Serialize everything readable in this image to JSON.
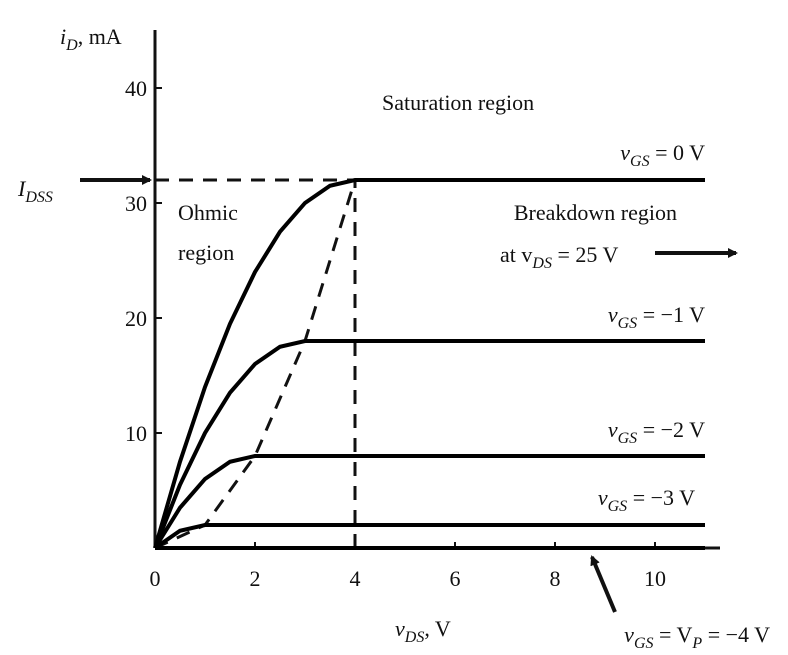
{
  "chart_data": {
    "type": "line",
    "x_label": [
      "v",
      "DS",
      ", V"
    ],
    "y_label": [
      "i",
      "D",
      ", mA"
    ],
    "xlim": [
      0,
      11.3
    ],
    "ylim": [
      0,
      45
    ],
    "xticks": [
      0,
      2,
      4,
      6,
      8,
      10
    ],
    "yticks": [
      10,
      20,
      30,
      40
    ],
    "series": [
      {
        "name": [
          "v",
          "GS",
          " = 0 V"
        ],
        "color": "#000000",
        "x": [
          0,
          0.5,
          1,
          1.5,
          2,
          2.5,
          3,
          3.5,
          4,
          11
        ],
        "values": [
          0,
          7.5,
          14,
          19.5,
          24,
          27.5,
          30,
          31.5,
          32,
          32
        ]
      },
      {
        "name": [
          "v",
          "GS",
          " = −1 V"
        ],
        "color": "#000000",
        "x": [
          0,
          0.5,
          1,
          1.5,
          2,
          2.5,
          3,
          11
        ],
        "values": [
          0,
          5.5,
          10,
          13.5,
          16,
          17.5,
          18,
          18
        ]
      },
      {
        "name": [
          "v",
          "GS",
          " = −2 V"
        ],
        "color": "#000000",
        "x": [
          0,
          0.5,
          1,
          1.5,
          2,
          11
        ],
        "values": [
          0,
          3.5,
          6,
          7.5,
          8,
          8
        ]
      },
      {
        "name": [
          "v",
          "GS",
          " = −3 V"
        ],
        "color": "#000000",
        "x": [
          0,
          0.5,
          1,
          11
        ],
        "values": [
          0,
          1.5,
          2,
          2
        ]
      },
      {
        "name": [
          "v",
          "GS",
          " = V",
          "P",
          " = −4 V"
        ],
        "color": "#000000",
        "x": [
          0,
          11
        ],
        "values": [
          0,
          0
        ]
      }
    ],
    "guides": [
      {
        "x": [
          0,
          4
        ],
        "values": [
          32,
          32
        ]
      },
      {
        "x": [
          4,
          4
        ],
        "values": [
          0,
          32
        ]
      },
      {
        "x": [
          0,
          1,
          2,
          3,
          4
        ],
        "values": [
          0,
          2,
          8,
          18,
          32
        ]
      }
    ],
    "annotations": {
      "idss": [
        "I",
        "DSS"
      ],
      "saturation": "Saturation region",
      "ohmic": [
        "Ohmic",
        "region"
      ],
      "breakdown": [
        "Breakdown region",
        [
          "at v",
          "DS",
          " = 25 V"
        ]
      ]
    }
  }
}
